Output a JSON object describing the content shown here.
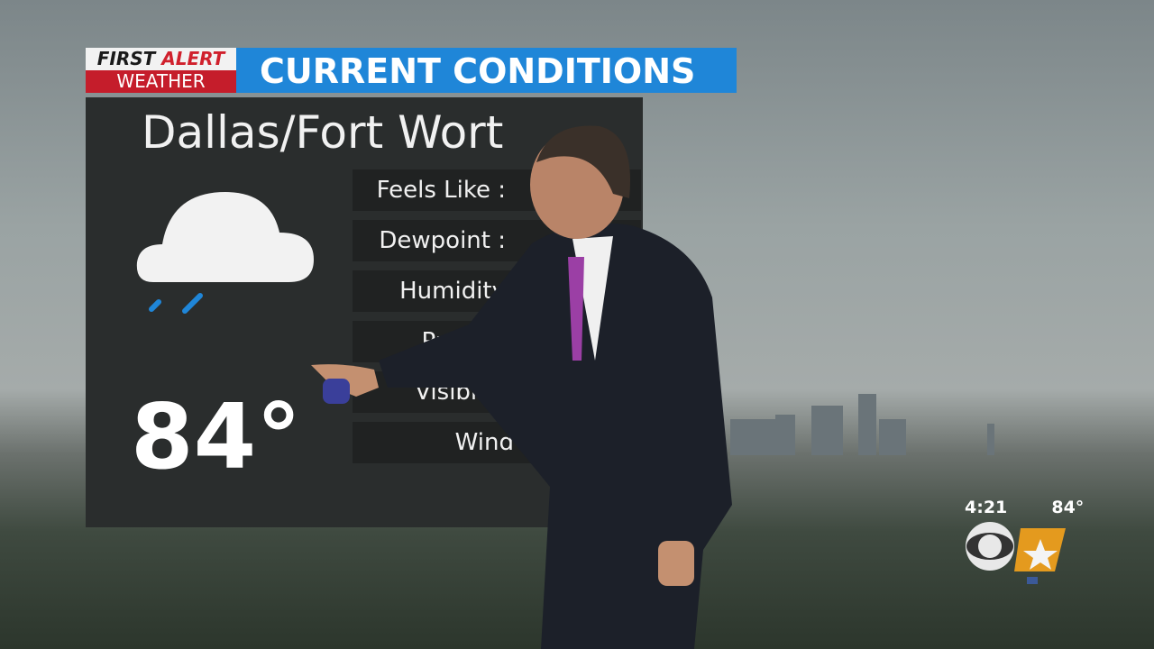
{
  "header": {
    "bug_line1_a": "FIRST",
    "bug_line1_b": "ALERT",
    "bug_line2": "WEATHER",
    "title": "CURRENT CONDITIONS"
  },
  "panel": {
    "city": "Dallas/Fort Wort",
    "condition_icon": "cloud-rain-icon",
    "temperature": "84°",
    "rows": [
      {
        "label": "Feels Like :"
      },
      {
        "label": "Dewpoint :"
      },
      {
        "label": "Humidity"
      },
      {
        "label": "Pr      re : 2"
      },
      {
        "label": "Visibility : 2"
      },
      {
        "label": "Wind : W"
      }
    ]
  },
  "station": {
    "time": "4:21",
    "temp": "84°",
    "logo": "CBS 11",
    "social_icon": "facebook-icon"
  },
  "colors": {
    "title_blue": "#1f86d8",
    "alert_red": "#c51d2b",
    "panel": "#2a2d2d"
  }
}
